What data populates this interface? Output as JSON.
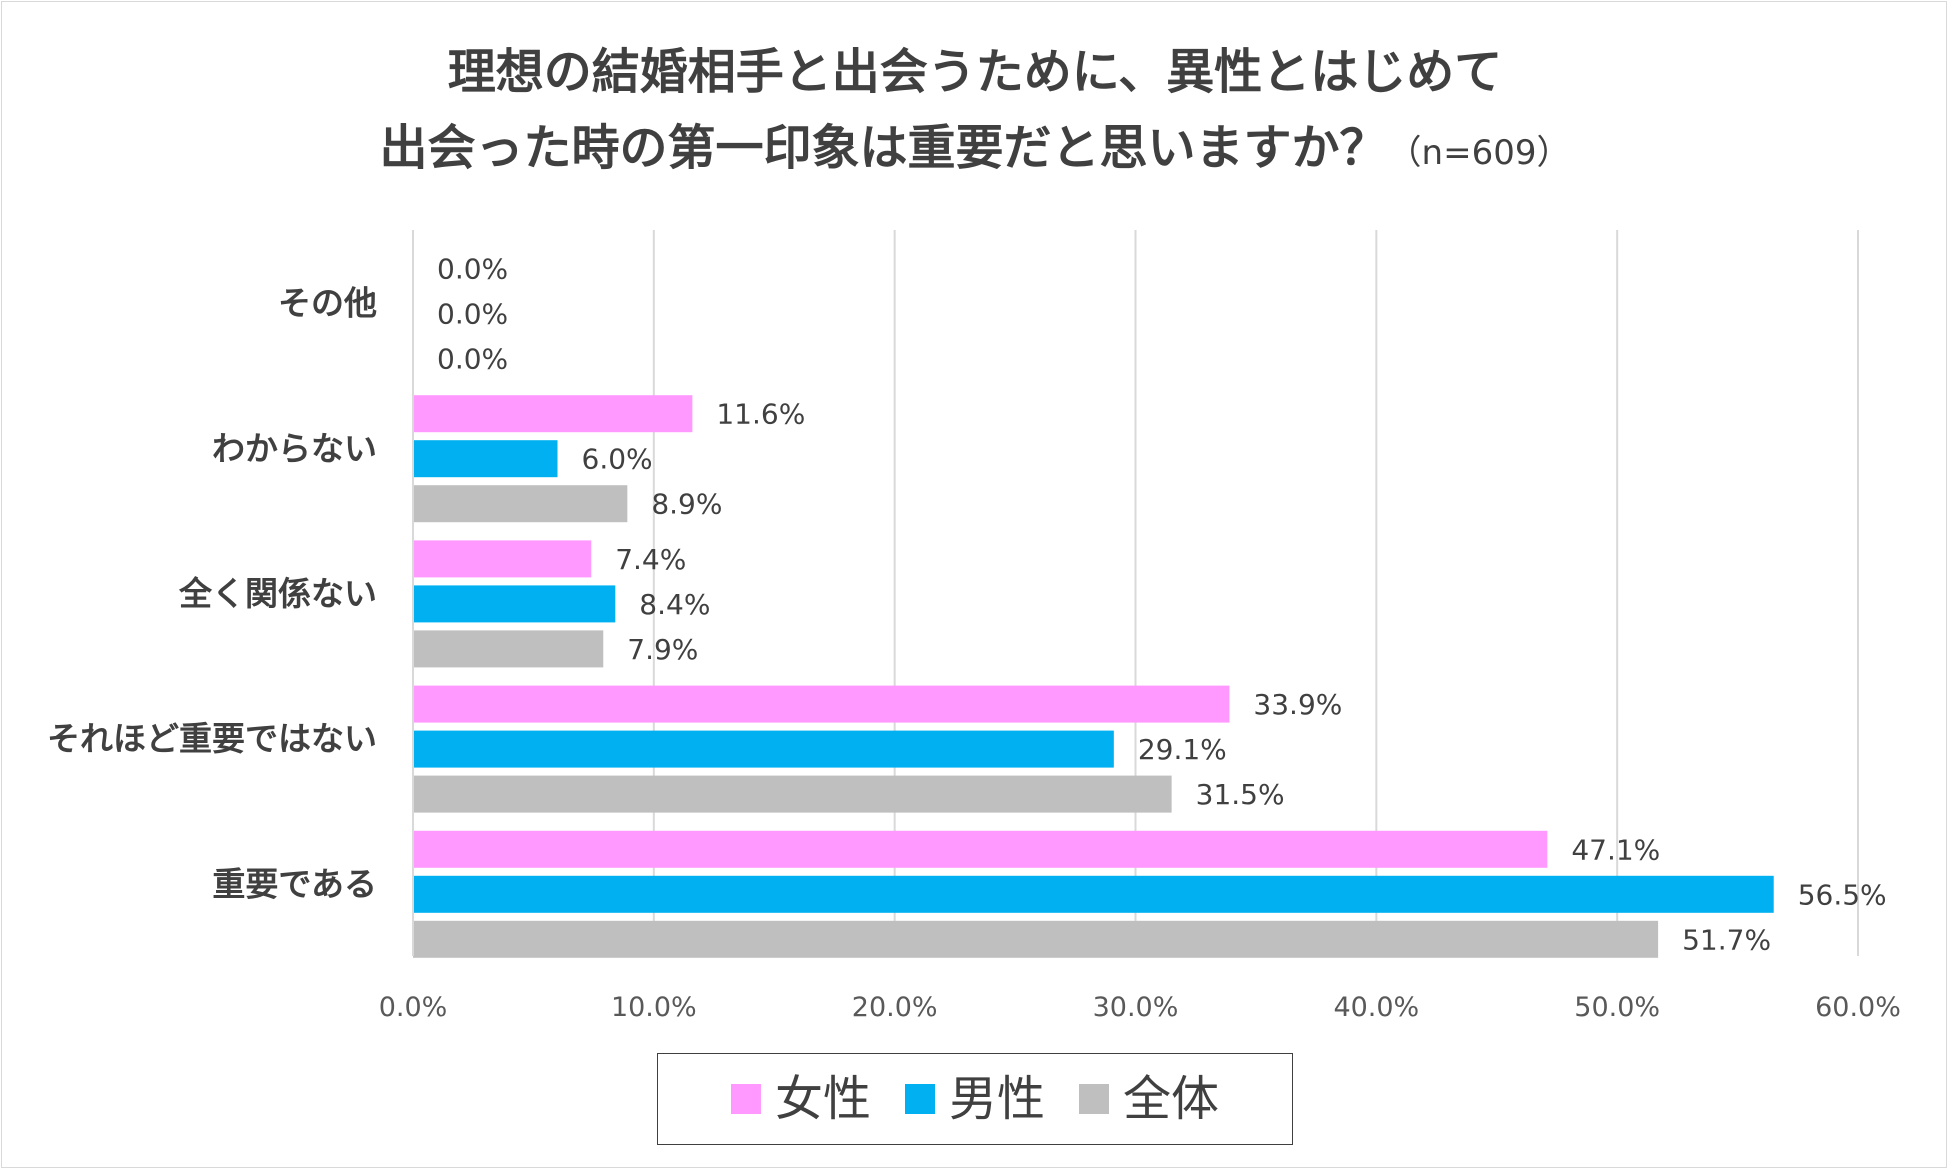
{
  "chart_data": {
    "type": "bar",
    "orientation": "horizontal",
    "title_line1": "理想の結婚相手と出会うために、異性とはじめて",
    "title_line2": "出会った時の第一印象は重要だと思いますか？",
    "title_note": "（n=609）",
    "categories": [
      "その他",
      "わからない",
      "全く関係ない",
      "それほど重要ではない",
      "重要である"
    ],
    "series": [
      {
        "name": "女性",
        "color": "#ff99ff",
        "values": [
          0.0,
          11.6,
          7.4,
          33.9,
          47.1
        ]
      },
      {
        "name": "男性",
        "color": "#00b0f0",
        "values": [
          0.0,
          6.0,
          8.4,
          29.1,
          56.5
        ]
      },
      {
        "name": "全体",
        "color": "#bfbfbf",
        "values": [
          0.0,
          8.9,
          7.9,
          31.5,
          51.7
        ]
      }
    ],
    "xlim": [
      0,
      60
    ],
    "xticks": [
      0,
      10,
      20,
      30,
      40,
      50,
      60
    ],
    "tick_suffix": "%",
    "grid": true,
    "legend_position": "bottom"
  }
}
